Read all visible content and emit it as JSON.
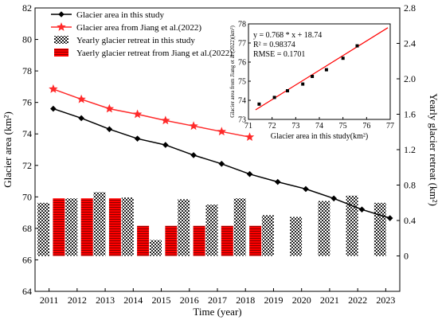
{
  "chart_data": [
    {
      "type": "line+bar",
      "xlabel": "Time (year)",
      "ylabel_left": "Glacier area (km²)",
      "ylabel_right": "Yearly glacier retreat (km²)",
      "x_ticks": [
        "2011",
        "2012",
        "2013",
        "2014",
        "2015",
        "2016",
        "2017",
        "2018",
        "2019",
        "2020",
        "2021",
        "2022",
        "2023"
      ],
      "xlim": [
        2011,
        2024
      ],
      "ylim_left": [
        64,
        82
      ],
      "ylim_right": [
        -0.4,
        2.8
      ],
      "left_ticks": [
        "64",
        "66",
        "68",
        "70",
        "72",
        "74",
        "76",
        "78",
        "80",
        "82"
      ],
      "right_ticks": [
        "0",
        "0.4",
        "0.8",
        "1.2",
        "1.6",
        "2.0",
        "2.4",
        "2.8"
      ],
      "grid": false,
      "legend_position": "top-left",
      "legend": [
        "Glacier area in this study",
        "Glacier area from Jiang et al.(2022)",
        "Yearly glacier retreat in this study",
        "Yaerly glacier retreat from Jiang et al.(2022)"
      ],
      "series": [
        {
          "name": "Glacier area in this study",
          "kind": "line",
          "axis": "left",
          "color": "#000000",
          "marker": "diamond",
          "x": [
            2011.65,
            2012.65,
            2013.65,
            2014.65,
            2015.65,
            2016.65,
            2017.65,
            2018.65,
            2019.65,
            2020.65,
            2021.65,
            2022.65,
            2023.65
          ],
          "values": [
            75.6,
            75.0,
            74.3,
            73.7,
            73.3,
            72.65,
            72.1,
            71.45,
            70.95,
            70.5,
            69.9,
            69.2,
            68.65
          ]
        },
        {
          "name": "Glacier area from Jiang et al.(2022)",
          "kind": "line",
          "axis": "left",
          "color": "#ff2a2a",
          "marker": "star",
          "x": [
            2011.65,
            2012.65,
            2013.65,
            2014.65,
            2015.65,
            2016.65,
            2017.65,
            2018.65
          ],
          "values": [
            76.85,
            76.2,
            75.6,
            75.25,
            74.85,
            74.5,
            74.15,
            73.8
          ]
        },
        {
          "name": "Yearly glacier retreat in this study",
          "kind": "bar",
          "axis": "right",
          "pattern": "checker",
          "x": [
            2011.3,
            2012.3,
            2013.3,
            2014.3,
            2015.3,
            2016.3,
            2017.3,
            2018.3,
            2019.3,
            2020.3,
            2021.3,
            2022.3,
            2023.3
          ],
          "values": [
            0.6,
            0.65,
            0.72,
            0.66,
            0.18,
            0.64,
            0.58,
            0.65,
            0.46,
            0.44,
            0.62,
            0.68,
            0.6
          ]
        },
        {
          "name": "Yaerly glacier retreat from Jiang et al.(2022)",
          "kind": "bar",
          "axis": "right",
          "pattern": "red-stripe",
          "color": "#ff0000",
          "x": [
            2011.85,
            2012.85,
            2013.85,
            2014.85,
            2015.85,
            2016.85,
            2017.85,
            2018.85
          ],
          "values": [
            0.65,
            0.65,
            0.65,
            0.34,
            0.34,
            0.34,
            0.34,
            0.34
          ]
        }
      ]
    },
    {
      "type": "scatter",
      "xlabel": "Glacier area in this study(km²)",
      "ylabel": "Glacier area from Jiang et al.(2022)(km²)",
      "xlim": [
        71,
        77
      ],
      "ylim": [
        73,
        78
      ],
      "x_ticks": [
        "71",
        "72",
        "73",
        "74",
        "75",
        "76",
        "77"
      ],
      "y_ticks": [
        "73",
        "74",
        "75",
        "76",
        "77",
        "78"
      ],
      "annotations": [
        "y = 0.768 * x + 18.74",
        "R² = 0.98374",
        "RMSE = 0.1701"
      ],
      "fit_line": {
        "slope": 0.768,
        "intercept": 18.74,
        "color": "#ff0000"
      },
      "points": {
        "x": [
          71.45,
          72.1,
          72.65,
          73.3,
          73.7,
          74.3,
          75.0,
          75.6
        ],
        "y": [
          73.8,
          74.15,
          74.5,
          74.85,
          75.25,
          75.6,
          76.2,
          76.85
        ]
      }
    }
  ]
}
